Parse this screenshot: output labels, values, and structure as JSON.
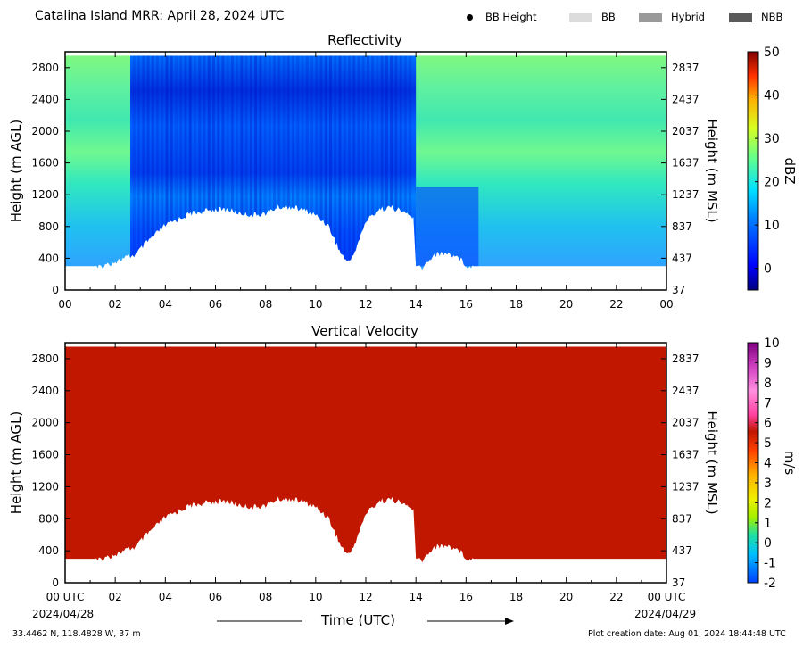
{
  "header": {
    "title": "Catalina Island MRR:  April 28, 2024 UTC",
    "legend": [
      {
        "label": "BB Height",
        "kind": "dot",
        "color": "#000000"
      },
      {
        "label": "BB",
        "kind": "swatch",
        "color": "#dcdcdc"
      },
      {
        "label": "Hybrid",
        "kind": "swatch",
        "color": "#9a9a9a"
      },
      {
        "label": "NBB",
        "kind": "swatch",
        "color": "#5a5a5a"
      }
    ]
  },
  "chart_data": [
    {
      "type": "heatmap",
      "title": "Reflectivity",
      "ylabel": "Height (m AGL)",
      "ylabel_right": "Height (m MSL)",
      "x_ticks": [
        "00",
        "02",
        "04",
        "06",
        "08",
        "10",
        "12",
        "14",
        "16",
        "18",
        "20",
        "22",
        "00"
      ],
      "x_range": [
        0,
        24
      ],
      "y_range": [
        0,
        3000
      ],
      "y_ticks_left": [
        "0",
        "400",
        "800",
        "1200",
        "1600",
        "2000",
        "2400",
        "2800"
      ],
      "y_ticks_right": [
        "37",
        "437",
        "837",
        "1237",
        "1637",
        "2037",
        "2437",
        "2837"
      ],
      "colorbar": {
        "label": "dBZ",
        "min": -5,
        "max": 50,
        "ticks": [
          "0",
          "10",
          "20",
          "30",
          "40",
          "50"
        ]
      },
      "data_top_m": 2950,
      "data_bottom_m": 300,
      "echo_base_profile": {
        "hours": [
          0,
          1.2,
          2.5,
          2.8,
          3.2,
          4.0,
          5.0,
          6.0,
          6.5,
          7.0,
          7.5,
          8.0,
          8.5,
          9.0,
          9.5,
          10.0,
          10.5,
          11.0,
          11.3,
          11.6,
          12.0,
          12.5,
          13.0,
          13.5,
          13.9,
          14.0,
          14.3,
          14.7,
          15.2,
          15.7,
          16.0,
          16.3
        ],
        "heights_m": [
          300,
          300,
          450,
          480,
          620,
          850,
          1000,
          1050,
          1050,
          1000,
          980,
          1000,
          1080,
          1080,
          1050,
          980,
          850,
          500,
          380,
          550,
          900,
          1050,
          1080,
          1020,
          950,
          300,
          320,
          480,
          500,
          450,
          350,
          300
        ]
      }
    },
    {
      "type": "heatmap",
      "title": "Vertical Velocity",
      "ylabel": "Height (m AGL)",
      "ylabel_right": "Height (m MSL)",
      "x_ticks": [
        "00 UTC",
        "02",
        "04",
        "06",
        "08",
        "10",
        "12",
        "14",
        "16",
        "18",
        "20",
        "22",
        "00 UTC"
      ],
      "x_dates": {
        "start": "2024/04/28",
        "end": "2024/04/29"
      },
      "xlabel": "Time (UTC)",
      "x_range": [
        0,
        24
      ],
      "y_range": [
        0,
        3000
      ],
      "y_ticks_left": [
        "0",
        "400",
        "800",
        "1200",
        "1600",
        "2000",
        "2400",
        "2800"
      ],
      "y_ticks_right": [
        "37",
        "437",
        "837",
        "1237",
        "1637",
        "2037",
        "2437",
        "2837"
      ],
      "colorbar": {
        "label": "m/s",
        "min": -2,
        "max": 10,
        "ticks": [
          "-2",
          "-1",
          "0",
          "1",
          "2",
          "3",
          "4",
          "5",
          "6",
          "7",
          "8",
          "9",
          "10"
        ]
      },
      "fill_value_ms": 6,
      "fill_color": "#c11700"
    }
  ],
  "footer": {
    "location": "33.4462 N, 118.4828 W, 37 m",
    "created": "Plot creation date: Aug 01, 2024 18:44:48 UTC"
  }
}
